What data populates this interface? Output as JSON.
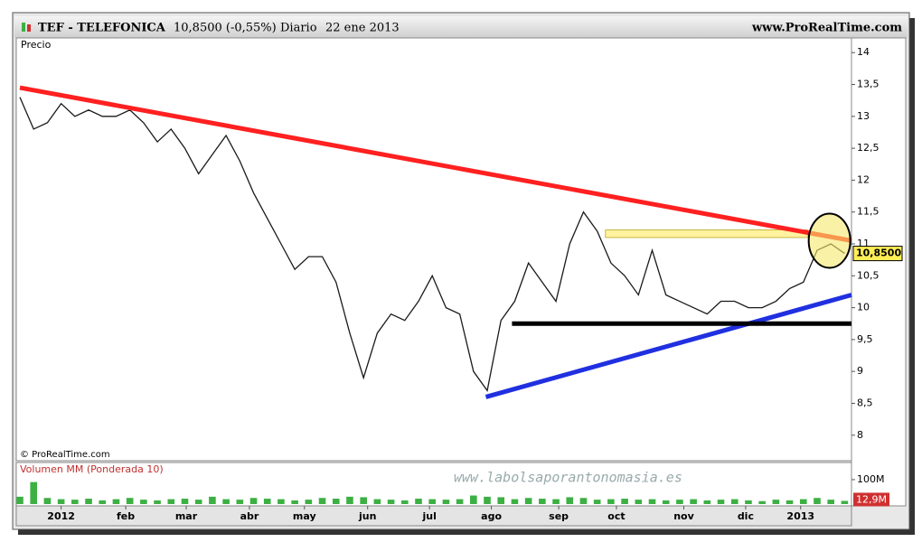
{
  "chart_data": {
    "type": "line",
    "title": "TEF - TELEFONICA",
    "quote": "10,8500 (-0,55%)",
    "period": "Diario",
    "date": "22 ene 2013",
    "site": "www.ProRealTime.com",
    "y_label": "Precio",
    "copyright": "© ProRealTime.com",
    "watermark": "www.labolsaporantonomasia.es",
    "last_label": "10,8500",
    "color": "#1a1a1a",
    "xlim": [
      0,
      60.5
    ],
    "xticks": [
      {
        "value": 3,
        "label": "2012"
      },
      {
        "value": 7.7,
        "label": "feb"
      },
      {
        "value": 12.1,
        "label": "mar"
      },
      {
        "value": 16.7,
        "label": "abr"
      },
      {
        "value": 20.7,
        "label": "may"
      },
      {
        "value": 25.3,
        "label": "jun"
      },
      {
        "value": 29.8,
        "label": "jul"
      },
      {
        "value": 34.3,
        "label": "ago"
      },
      {
        "value": 39.2,
        "label": "sep"
      },
      {
        "value": 43.4,
        "label": "oct"
      },
      {
        "value": 48.3,
        "label": "nov"
      },
      {
        "value": 52.8,
        "label": "dic"
      },
      {
        "value": 56.8,
        "label": "2013"
      }
    ],
    "ylim": [
      7.6,
      14.23
    ],
    "yticks": [
      {
        "value": 8,
        "label": "8"
      },
      {
        "value": 8.5,
        "label": "8,5"
      },
      {
        "value": 9,
        "label": "9"
      },
      {
        "value": 9.5,
        "label": "9,5"
      },
      {
        "value": 10,
        "label": "10"
      },
      {
        "value": 10.5,
        "label": "10,5"
      },
      {
        "value": 11,
        "label": "11"
      },
      {
        "value": 11.5,
        "label": "11,5"
      },
      {
        "value": 12,
        "label": "12"
      },
      {
        "value": 12.5,
        "label": "12,5"
      },
      {
        "value": 13,
        "label": "13"
      },
      {
        "value": 13.5,
        "label": "13,5"
      },
      {
        "value": 14,
        "label": "14"
      }
    ],
    "values": [
      13.3,
      12.8,
      12.9,
      13.2,
      13.0,
      13.1,
      13.0,
      13.0,
      13.1,
      12.9,
      12.6,
      12.8,
      12.5,
      12.1,
      12.4,
      12.7,
      12.3,
      11.8,
      11.4,
      11.0,
      10.6,
      10.8,
      10.8,
      10.4,
      9.6,
      8.9,
      9.6,
      9.9,
      9.8,
      10.1,
      10.5,
      10.0,
      9.9,
      9.0,
      8.7,
      9.8,
      10.1,
      10.7,
      10.4,
      10.1,
      11.0,
      11.5,
      11.2,
      10.7,
      10.5,
      10.2,
      10.9,
      10.2,
      10.1,
      10.0,
      9.9,
      10.1,
      10.1,
      10.0,
      10.0,
      10.1,
      10.3,
      10.4,
      10.9,
      11.0,
      10.85
    ],
    "trendlines": [
      {
        "color": "#ff2020",
        "x": [
          0,
          60.5
        ],
        "y": [
          13.45,
          11.05
        ]
      },
      {
        "color": "#2030e0",
        "x": [
          33.9,
          60.5
        ],
        "y": [
          8.6,
          10.2
        ]
      },
      {
        "color": "#000000",
        "x": [
          35.8,
          60.5
        ],
        "y": [
          9.75,
          9.75
        ]
      }
    ],
    "zone": {
      "color": "#fff3a0",
      "x": [
        42.6,
        57.3
      ],
      "y": [
        11.1,
        11.22
      ]
    },
    "highlight": {
      "color": "#f5e86a",
      "x": 58.9,
      "y": 11.05
    },
    "volume": {
      "name": "Volumen MM (Ponderada 10)",
      "color": "#3cb043",
      "ylim": [
        0,
        170
      ],
      "yticks": [
        {
          "value": 100,
          "label": "100M"
        }
      ],
      "last_label": "12,9M",
      "values": [
        30,
        90,
        25,
        20,
        18,
        22,
        15,
        20,
        25,
        18,
        15,
        20,
        22,
        18,
        30,
        20,
        18,
        25,
        22,
        20,
        15,
        18,
        25,
        22,
        30,
        28,
        20,
        18,
        15,
        22,
        20,
        18,
        20,
        35,
        30,
        28,
        20,
        25,
        22,
        20,
        28,
        25,
        18,
        20,
        22,
        18,
        20,
        15,
        18,
        20,
        15,
        18,
        20,
        15,
        12,
        18,
        15,
        20,
        25,
        18,
        13
      ]
    }
  }
}
